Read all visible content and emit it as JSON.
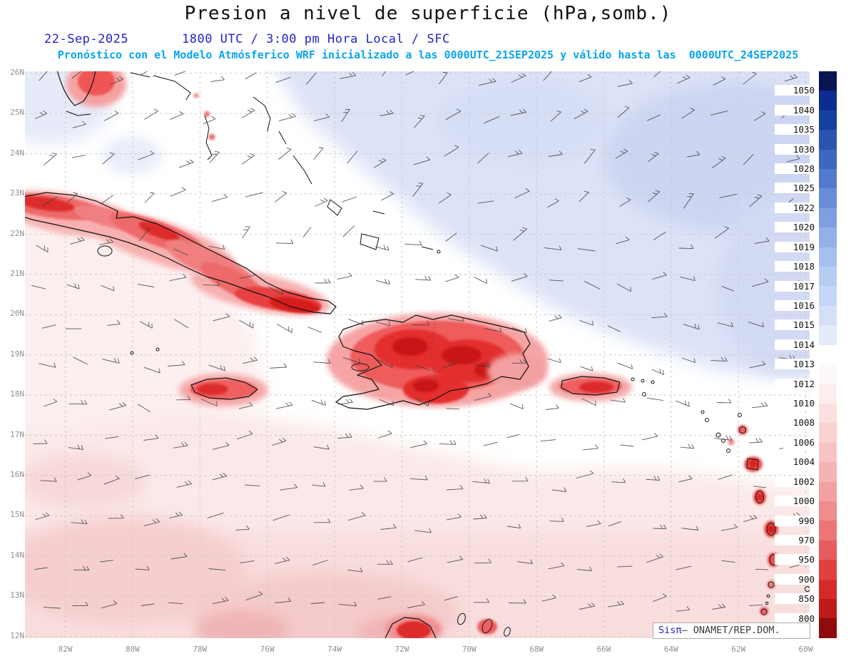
{
  "header": {
    "title": "Presion a nivel de superficie (hPa,somb.)",
    "date": "22-Sep-2025",
    "time": "1800 UTC / 3:00 pm Hora Local / SFC",
    "forecast": "Pronóstico con el Modelo Atmósferico WRF inicializado a las 0000UTC_21SEP2025 y válido hasta las  0000UTC_24SEP2025"
  },
  "axes": {
    "lat_labels": [
      "26N",
      "25N",
      "24N",
      "23N",
      "22N",
      "21N",
      "20N",
      "19N",
      "18N",
      "17N",
      "16N",
      "15N",
      "14N",
      "13N",
      "12N"
    ],
    "lon_labels": [
      "82W",
      "80W",
      "78W",
      "76W",
      "74W",
      "72W",
      "70W",
      "68W",
      "66W",
      "64W",
      "62W",
      "60W"
    ]
  },
  "colorbar": {
    "unit": "hPa",
    "values": [
      1050,
      1040,
      1035,
      1030,
      1028,
      1025,
      1022,
      1020,
      1019,
      1018,
      1017,
      1016,
      1015,
      1014,
      1013,
      1012,
      1010,
      1008,
      1006,
      1004,
      1002,
      1000,
      990,
      970,
      950,
      900,
      850,
      800
    ],
    "colors": [
      "#081454",
      "#0c2d8f",
      "#16409f",
      "#2a54b0",
      "#3e68c0",
      "#5379cc",
      "#688cd8",
      "#7f9fe2",
      "#93b0ea",
      "#a5bfef",
      "#b5ccf3",
      "#c5d7f6",
      "#d4e0f8",
      "#e4ebfb",
      "#ffffff",
      "#fef8f8",
      "#fdeeee",
      "#fbe0e0",
      "#f9d2d2",
      "#f7c3c3",
      "#f5b3b3",
      "#f2a1a1",
      "#ef8d8d",
      "#ec7575",
      "#e75c5c",
      "#e14040",
      "#d62a2a",
      "#bd1a1a",
      "#8f0c0c"
    ]
  },
  "watermark": {
    "brand": "Sisπ",
    "org": "— ONAMET/REP.DOM."
  },
  "colors": {
    "header_date_blue": "#2323cc",
    "forecast_cyan": "#09a4f0",
    "high_pressure_lavender": "#dde3f7",
    "low_pressure_pink": "#fbe9e9",
    "island_red_core": "#cc1515",
    "coastline_black": "#111111"
  }
}
